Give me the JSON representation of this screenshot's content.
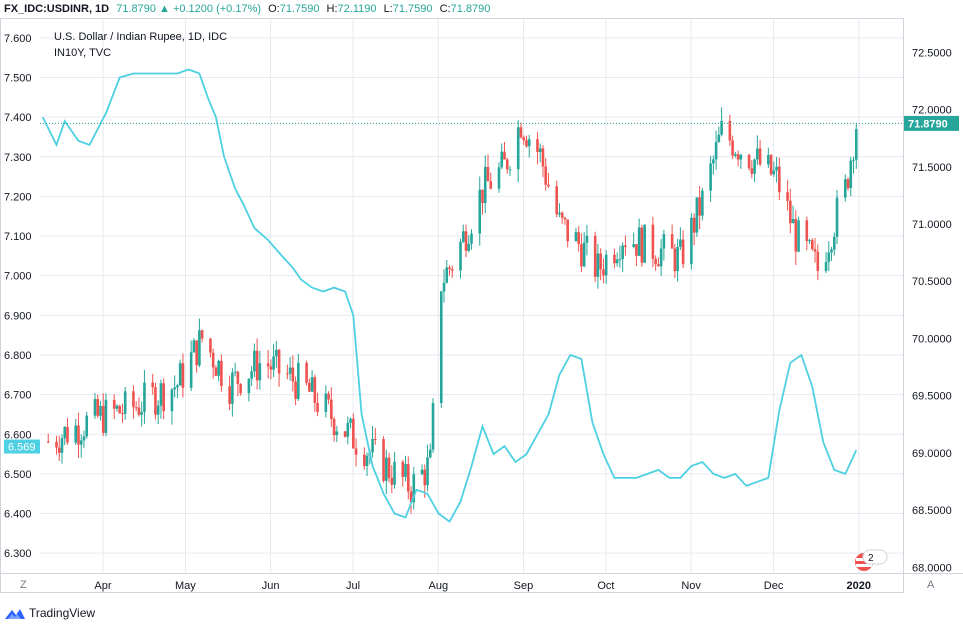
{
  "header": {
    "symbol": "FX_IDC:USDINR, 1D",
    "last": "71.8790",
    "change": "▲ +0.1200 (+0.17%)",
    "open_label": "O:",
    "open": "71.7590",
    "high_label": "H:",
    "high": "72.1190",
    "low_label": "L:",
    "low": "71.7590",
    "close_label": "C:",
    "close": "71.8790"
  },
  "legend": {
    "line1": "U.S. Dollar / Indian Rupee, 1D, IDC",
    "line2": "IN10Y, TVC"
  },
  "axes": {
    "left_ticks": [
      "7.600",
      "7.500",
      "7.400",
      "7.300",
      "7.200",
      "7.100",
      "7.000",
      "6.900",
      "6.800",
      "6.700",
      "6.600",
      "6.500",
      "6.400",
      "6.300"
    ],
    "right_ticks": [
      "72.5000",
      "72.0000",
      "71.5000",
      "71.0000",
      "70.5000",
      "70.0000",
      "69.5000",
      "69.0000",
      "68.5000",
      "68.0000"
    ],
    "month_labels": [
      "Apr",
      "May",
      "Jun",
      "Jul",
      "Aug",
      "Sep",
      "Oct",
      "Nov",
      "Dec",
      "2020"
    ],
    "left_price_tag": "6.569",
    "right_price_tag": "71.8790",
    "corner_left": "Z",
    "corner_right": "A",
    "badge_count": "2"
  },
  "footer": {
    "brand": "TradingView"
  },
  "colors": {
    "up": "#26a69a",
    "down": "#ef5350",
    "line": "#4dd0e1",
    "grid": "#e6e9ef",
    "text": "#131722"
  },
  "chart_data": {
    "type": "line",
    "title": "U.S. Dollar / Indian Rupee, 1D, IDC",
    "x": [
      "2019-03-15",
      "2019-04-01",
      "2019-05-01",
      "2019-06-01",
      "2019-07-01",
      "2019-08-01",
      "2019-09-01",
      "2019-10-01",
      "2019-11-01",
      "2019-12-01",
      "2020-01-01"
    ],
    "series": [
      {
        "name": "IN10Y, TVC",
        "axis": "left",
        "x": [
          "2019-03-13",
          "2019-03-18",
          "2019-03-21",
          "2019-03-26",
          "2019-03-30",
          "2019-04-05",
          "2019-04-10",
          "2019-04-15",
          "2019-04-20",
          "2019-04-25",
          "2019-05-01",
          "2019-05-05",
          "2019-05-09",
          "2019-05-12",
          "2019-05-15",
          "2019-05-18",
          "2019-05-22",
          "2019-05-25",
          "2019-05-29",
          "2019-06-03",
          "2019-06-08",
          "2019-06-12",
          "2019-06-15",
          "2019-06-19",
          "2019-06-23",
          "2019-06-27",
          "2019-07-01",
          "2019-07-04",
          "2019-07-07",
          "2019-07-11",
          "2019-07-15",
          "2019-07-19",
          "2019-07-23",
          "2019-07-27",
          "2019-07-31",
          "2019-08-04",
          "2019-08-08",
          "2019-08-12",
          "2019-08-16",
          "2019-08-20",
          "2019-08-24",
          "2019-08-28",
          "2019-09-01",
          "2019-09-05",
          "2019-09-09",
          "2019-09-13",
          "2019-09-17",
          "2019-09-21",
          "2019-09-25",
          "2019-09-29",
          "2019-10-03",
          "2019-10-07",
          "2019-10-11",
          "2019-10-15",
          "2019-10-19",
          "2019-10-23",
          "2019-10-27",
          "2019-10-31",
          "2019-11-04",
          "2019-11-08",
          "2019-11-12",
          "2019-11-16",
          "2019-11-20",
          "2019-11-24",
          "2019-11-28",
          "2019-12-02",
          "2019-12-06",
          "2019-12-10",
          "2019-12-14",
          "2019-12-18",
          "2019-12-22",
          "2019-12-26",
          "2019-12-30",
          "2020-01-03"
        ],
        "values": [
          7.4,
          7.33,
          7.39,
          7.34,
          7.33,
          7.41,
          7.5,
          7.51,
          7.51,
          7.51,
          7.51,
          7.52,
          7.51,
          7.45,
          7.4,
          7.3,
          7.22,
          7.18,
          7.12,
          7.09,
          7.05,
          7.02,
          6.99,
          6.97,
          6.96,
          6.97,
          6.96,
          6.9,
          6.65,
          6.52,
          6.45,
          6.4,
          6.39,
          6.46,
          6.45,
          6.4,
          6.38,
          6.43,
          6.52,
          6.62,
          6.55,
          6.57,
          6.53,
          6.55,
          6.6,
          6.65,
          6.75,
          6.8,
          6.79,
          6.63,
          6.55,
          6.49,
          6.49,
          6.49,
          6.5,
          6.51,
          6.49,
          6.49,
          6.52,
          6.53,
          6.5,
          6.49,
          6.5,
          6.47,
          6.48,
          6.49,
          6.66,
          6.78,
          6.8,
          6.72,
          6.58,
          6.51,
          6.5,
          6.56
        ]
      },
      {
        "name": "U.S. Dollar / Indian Rupee, 1D, IDC",
        "axis": "right",
        "x": [
          "2019-03-15",
          "2019-04-01",
          "2019-04-15",
          "2019-05-01",
          "2019-05-10",
          "2019-05-20",
          "2019-06-01",
          "2019-06-15",
          "2019-07-01",
          "2019-07-15",
          "2019-07-25",
          "2019-08-01",
          "2019-08-05",
          "2019-08-10",
          "2019-08-20",
          "2019-08-28",
          "2019-09-03",
          "2019-09-10",
          "2019-09-17",
          "2019-09-25",
          "2019-10-01",
          "2019-10-10",
          "2019-10-20",
          "2019-10-31",
          "2019-11-08",
          "2019-11-15",
          "2019-11-25",
          "2019-12-05",
          "2019-12-12",
          "2019-12-20",
          "2019-12-30",
          "2020-01-03"
        ],
        "values": [
          69.1,
          69.3,
          69.4,
          69.6,
          70.0,
          69.6,
          69.8,
          69.6,
          69.2,
          68.9,
          68.7,
          68.9,
          70.5,
          70.7,
          71.3,
          71.5,
          71.9,
          71.6,
          71.0,
          70.8,
          70.6,
          70.9,
          70.8,
          70.7,
          71.2,
          71.8,
          71.6,
          71.4,
          70.9,
          70.6,
          71.3,
          71.88
        ]
      }
    ],
    "ohlc_last": {
      "open": 71.759,
      "high": 72.119,
      "low": 71.759,
      "close": 71.879
    },
    "ylim_left": [
      6.25,
      7.65
    ],
    "ylim_right": [
      67.95,
      72.8
    ],
    "grid": true,
    "legend_position": "top-left"
  }
}
